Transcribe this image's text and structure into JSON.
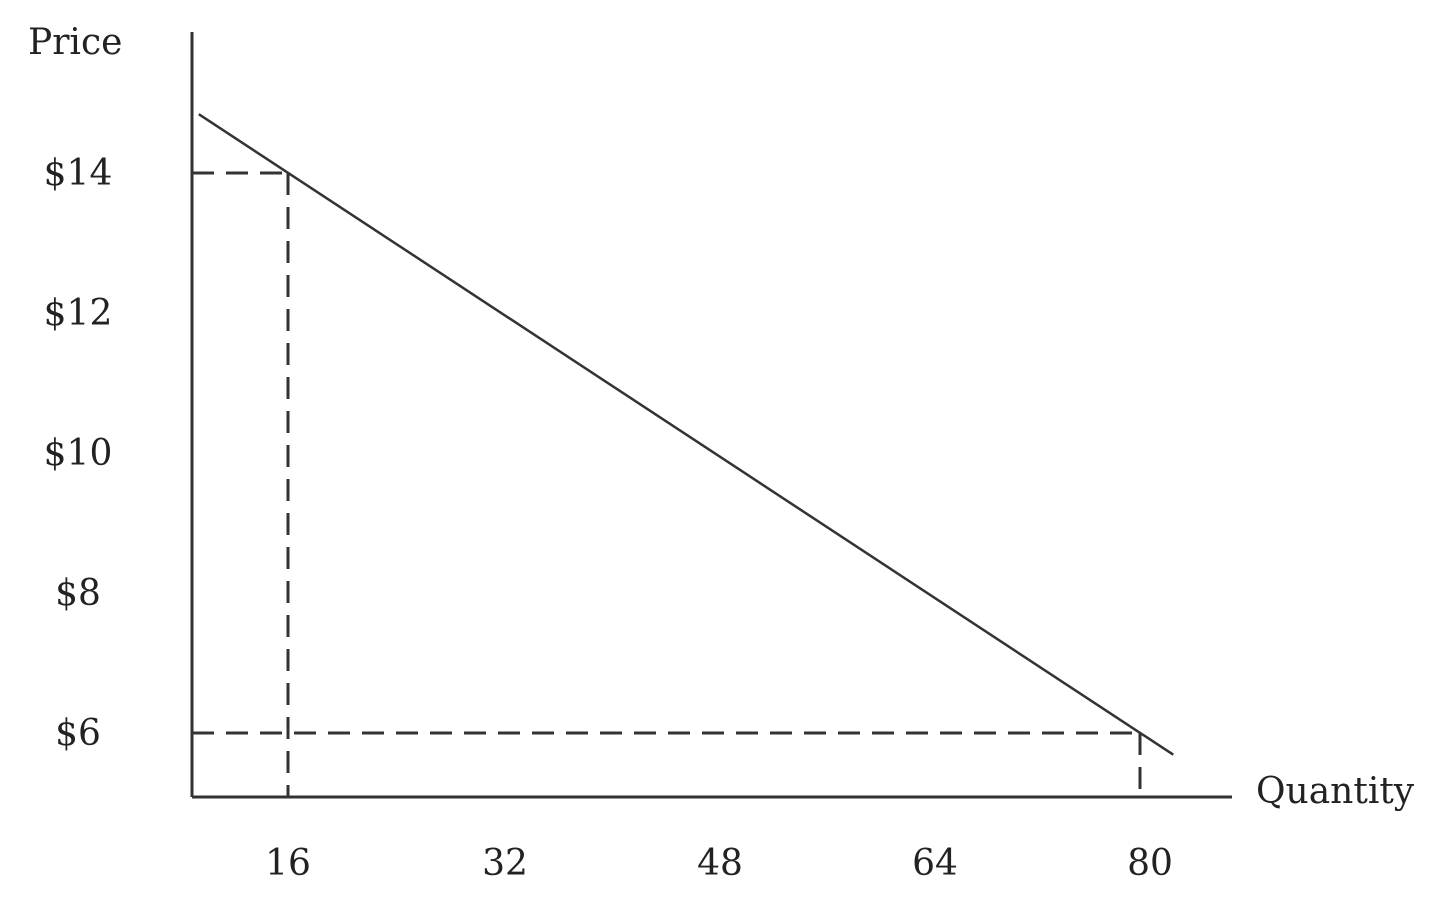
{
  "chart_data": {
    "type": "line",
    "title": "",
    "xlabel": "Quantity",
    "ylabel": "Price",
    "x_ticks": [
      16,
      32,
      48,
      64,
      80
    ],
    "x_tick_labels": [
      "16",
      "32",
      "48",
      "64",
      "80"
    ],
    "y_ticks": [
      14,
      12,
      10,
      8,
      6
    ],
    "y_tick_labels": [
      "$14",
      "$12",
      "$10",
      "$8",
      "$6"
    ],
    "grid": false,
    "series": [
      {
        "style": "solid",
        "color": "#333333",
        "points": [
          [
            9.3,
            14.84
          ],
          [
            82.5,
            5.69
          ]
        ]
      }
    ],
    "reference_points": [
      {
        "x": 16,
        "y": 14,
        "style": "dashed"
      },
      {
        "x": 80,
        "y": 6,
        "style": "dashed"
      }
    ]
  }
}
